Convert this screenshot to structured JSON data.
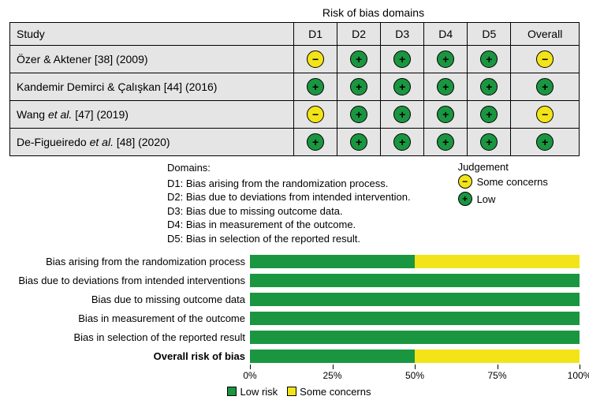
{
  "colors": {
    "low": "#1a9641",
    "some": "#f2e419",
    "table_bg": "#e5e5e5",
    "border": "#000000"
  },
  "title": "Risk of bias domains",
  "table": {
    "headers": [
      "Study",
      "D1",
      "D2",
      "D3",
      "D4",
      "D5",
      "Overall"
    ],
    "rows": [
      {
        "study": "Özer & Aktener [38] (2009)",
        "cells": [
          "some",
          "low",
          "low",
          "low",
          "low",
          "some"
        ]
      },
      {
        "study": "Kandemir Demirci & Çalışkan [44] (2016)",
        "cells": [
          "low",
          "low",
          "low",
          "low",
          "low",
          "low"
        ]
      },
      {
        "study": "Wang et al. [47] (2019)",
        "italic_span": "et al.",
        "cells": [
          "some",
          "low",
          "low",
          "low",
          "low",
          "some"
        ]
      },
      {
        "study": "De-Figueiredo et al. [48] (2020)",
        "italic_span": "et al.",
        "cells": [
          "low",
          "low",
          "low",
          "low",
          "low",
          "low"
        ]
      }
    ]
  },
  "domains_legend": {
    "heading": "Domains:",
    "items": [
      "D1: Bias arising from the randomization process.",
      "D2: Bias due to deviations from intended intervention.",
      "D3: Bias due to missing outcome data.",
      "D4: Bias in measurement of the outcome.",
      "D5: Bias in selection of the reported result."
    ]
  },
  "judgement_legend": {
    "heading": "Judgement",
    "items": [
      {
        "key": "some",
        "symbol": "−",
        "label": "Some concerns"
      },
      {
        "key": "low",
        "symbol": "+",
        "label": "Low"
      }
    ]
  },
  "symbols": {
    "low": "+",
    "some": "−"
  },
  "chart": {
    "rows": [
      {
        "label": "Bias arising from the randomization process",
        "low": 50,
        "some": 50,
        "bold": false
      },
      {
        "label": "Bias due to deviations from intended interventions",
        "low": 100,
        "some": 0,
        "bold": false
      },
      {
        "label": "Bias due to missing outcome data",
        "low": 100,
        "some": 0,
        "bold": false
      },
      {
        "label": "Bias in measurement of the outcome",
        "low": 100,
        "some": 0,
        "bold": false
      },
      {
        "label": "Bias in selection of the reported result",
        "low": 100,
        "some": 0,
        "bold": false
      },
      {
        "label": "Overall risk of bias",
        "low": 50,
        "some": 50,
        "bold": true
      }
    ],
    "ticks": [
      0,
      25,
      50,
      75,
      100
    ],
    "tick_labels": [
      "0%",
      "25%",
      "50%",
      "75%",
      "100%"
    ],
    "legend": [
      {
        "color_key": "low",
        "label": "Low risk"
      },
      {
        "color_key": "some",
        "label": "Some concerns"
      }
    ]
  }
}
